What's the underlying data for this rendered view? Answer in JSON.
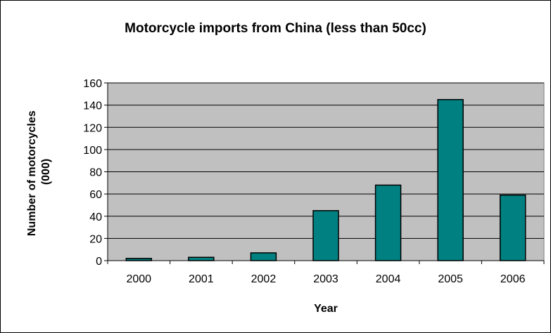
{
  "chart_data": {
    "type": "bar",
    "title": "Motorcycle imports from China (less than 50cc)",
    "xlabel": "Year",
    "ylabel_lines": [
      "Number of motorcycles",
      "(000)"
    ],
    "categories": [
      "2000",
      "2001",
      "2002",
      "2003",
      "2004",
      "2005",
      "2006"
    ],
    "values": [
      2,
      3,
      7,
      45,
      68,
      145,
      59
    ],
    "ylim": [
      0,
      160
    ],
    "yticks": [
      "0",
      "20",
      "40",
      "60",
      "80",
      "100",
      "120",
      "140",
      "160"
    ],
    "grid": true,
    "legend": "none",
    "colors": {
      "bar": "#008080",
      "plot_background": "#C0C0C0",
      "gridline": "#000000"
    }
  }
}
